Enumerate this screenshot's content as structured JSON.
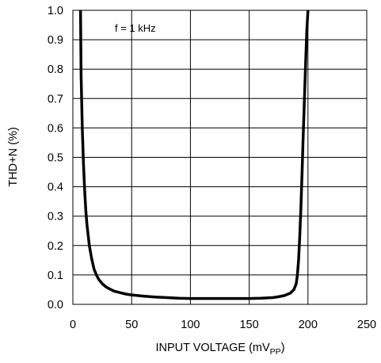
{
  "chart_data": {
    "type": "line",
    "title": "",
    "xlabel": "INPUT VOLTAGE (mV",
    "xlabel_subscript": "PP",
    "xlabel_suffix": ")",
    "ylabel": "THD+N (%)",
    "xlim": [
      0,
      250
    ],
    "ylim": [
      0,
      1.0
    ],
    "x_ticks": [
      0,
      50,
      100,
      150,
      200,
      250
    ],
    "x_tick_labels": [
      "0",
      "50",
      "100",
      "150",
      "200",
      "250"
    ],
    "y_ticks": [
      0.0,
      0.1,
      0.2,
      0.3,
      0.4,
      0.5,
      0.6,
      0.7,
      0.8,
      0.9,
      1.0
    ],
    "y_tick_labels": [
      "0.0",
      "0.1",
      "0.2",
      "0.3",
      "0.4",
      "0.5",
      "0.6",
      "0.7",
      "0.8",
      "0.9",
      "1.0"
    ],
    "grid": true,
    "annotation": "f = 1 kHz",
    "line_color": "#000000",
    "series": [
      {
        "x": [
          6.5,
          7,
          8,
          9,
          10,
          11,
          12,
          14,
          16,
          18,
          20,
          22,
          25,
          28,
          30,
          35,
          40,
          45,
          50,
          55,
          60,
          70,
          80,
          90,
          100,
          110,
          120,
          130,
          140,
          150,
          160,
          170,
          175,
          180,
          185,
          188,
          190,
          191,
          192,
          193,
          194,
          195,
          196,
          197,
          198,
          199,
          200
        ],
        "y": [
          1.0,
          0.78,
          0.6,
          0.48,
          0.39,
          0.32,
          0.27,
          0.2,
          0.155,
          0.12,
          0.1,
          0.085,
          0.07,
          0.06,
          0.055,
          0.045,
          0.04,
          0.035,
          0.032,
          0.03,
          0.028,
          0.025,
          0.023,
          0.021,
          0.02,
          0.02,
          0.02,
          0.02,
          0.02,
          0.02,
          0.021,
          0.023,
          0.026,
          0.03,
          0.038,
          0.05,
          0.07,
          0.1,
          0.15,
          0.23,
          0.33,
          0.45,
          0.58,
          0.7,
          0.82,
          0.93,
          1.0
        ]
      }
    ]
  }
}
